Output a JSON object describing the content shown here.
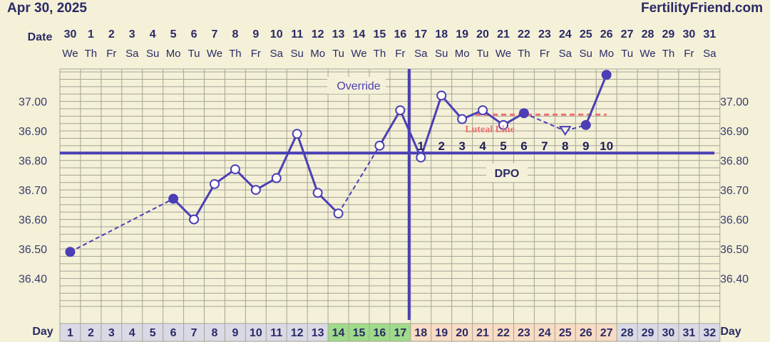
{
  "header": {
    "date": "Apr 30, 2025",
    "brand": "FertilityFriend.com"
  },
  "labels": {
    "date_row": "Date",
    "day_row": "Day",
    "override": "Override",
    "dpo": "DPO",
    "luteal": "Luteal Line"
  },
  "chart_data": {
    "type": "line",
    "dates": [
      "30",
      "1",
      "2",
      "3",
      "4",
      "5",
      "6",
      "7",
      "8",
      "9",
      "10",
      "11",
      "12",
      "13",
      "14",
      "15",
      "16",
      "17",
      "18",
      "19",
      "20",
      "21",
      "22",
      "23",
      "24",
      "25",
      "26",
      "27",
      "28",
      "29",
      "30",
      "31"
    ],
    "weekdays": [
      "We",
      "Th",
      "Fr",
      "Sa",
      "Su",
      "Mo",
      "Tu",
      "We",
      "Th",
      "Fr",
      "Sa",
      "Su",
      "Mo",
      "Tu",
      "We",
      "Th",
      "Fr",
      "Sa",
      "Su",
      "Mo",
      "Tu",
      "We",
      "Th",
      "Fr",
      "Sa",
      "Su",
      "Mo",
      "Tu",
      "We",
      "Th",
      "Fr",
      "Sa"
    ],
    "days": [
      "1",
      "2",
      "3",
      "4",
      "5",
      "6",
      "7",
      "8",
      "9",
      "10",
      "11",
      "12",
      "13",
      "14",
      "15",
      "16",
      "17",
      "18",
      "19",
      "20",
      "21",
      "22",
      "23",
      "24",
      "25",
      "26",
      "27",
      "28",
      "29",
      "30",
      "31",
      "32"
    ],
    "y_ticks": [
      "36.40",
      "36.50",
      "36.60",
      "36.70",
      "36.80",
      "36.90",
      "37.00"
    ],
    "ylim": [
      36.305,
      37.11
    ],
    "temps": [
      {
        "day": 1,
        "temp": 36.49,
        "filled": true
      },
      {
        "day": 6,
        "temp": 36.67,
        "filled": true
      },
      {
        "day": 7,
        "temp": 36.6,
        "filled": false
      },
      {
        "day": 8,
        "temp": 36.72,
        "filled": false
      },
      {
        "day": 9,
        "temp": 36.77,
        "filled": false
      },
      {
        "day": 10,
        "temp": 36.7,
        "filled": false
      },
      {
        "day": 11,
        "temp": 36.74,
        "filled": false
      },
      {
        "day": 12,
        "temp": 36.89,
        "filled": false
      },
      {
        "day": 13,
        "temp": 36.69,
        "filled": false
      },
      {
        "day": 14,
        "temp": 36.62,
        "filled": false
      },
      {
        "day": 16,
        "temp": 36.85,
        "filled": false
      },
      {
        "day": 17,
        "temp": 36.97,
        "filled": false
      },
      {
        "day": 18,
        "temp": 36.81,
        "filled": false
      },
      {
        "day": 19,
        "temp": 37.02,
        "filled": false
      },
      {
        "day": 20,
        "temp": 36.94,
        "filled": false
      },
      {
        "day": 21,
        "temp": 36.97,
        "filled": false
      },
      {
        "day": 22,
        "temp": 36.92,
        "filled": false
      },
      {
        "day": 23,
        "temp": 36.96,
        "filled": true
      },
      {
        "day": 25,
        "temp": 36.9,
        "filled": false,
        "marker": "triangle"
      },
      {
        "day": 26,
        "temp": 36.92,
        "filled": true
      },
      {
        "day": 27,
        "temp": 37.09,
        "filled": true
      }
    ],
    "dashed_gaps": [
      [
        1,
        6
      ],
      [
        14,
        16
      ],
      [
        23,
        25
      ],
      [
        25,
        26
      ]
    ],
    "coverline": 36.825,
    "ovulation_day": 17,
    "luteal_line": {
      "from_day": 21,
      "to_day": 27,
      "temp": 36.955
    },
    "dpo_labels": [
      "1",
      "2",
      "3",
      "4",
      "5",
      "6",
      "7",
      "8",
      "9",
      "10"
    ],
    "fertile_days": [
      14,
      15,
      16,
      17
    ],
    "luteal_days": [
      18,
      19,
      20,
      21,
      22,
      23,
      24,
      25,
      26,
      27
    ],
    "colors": {
      "line": "#4b3fb5",
      "grid": "#a5a596",
      "bg": "#f4f1d8",
      "fertile": "#9fdc8a",
      "luteal_bg": "#f8dcc4",
      "day_bg": "#dadae6",
      "luteal_line": "#f07070",
      "text": "#2a2a66"
    }
  }
}
